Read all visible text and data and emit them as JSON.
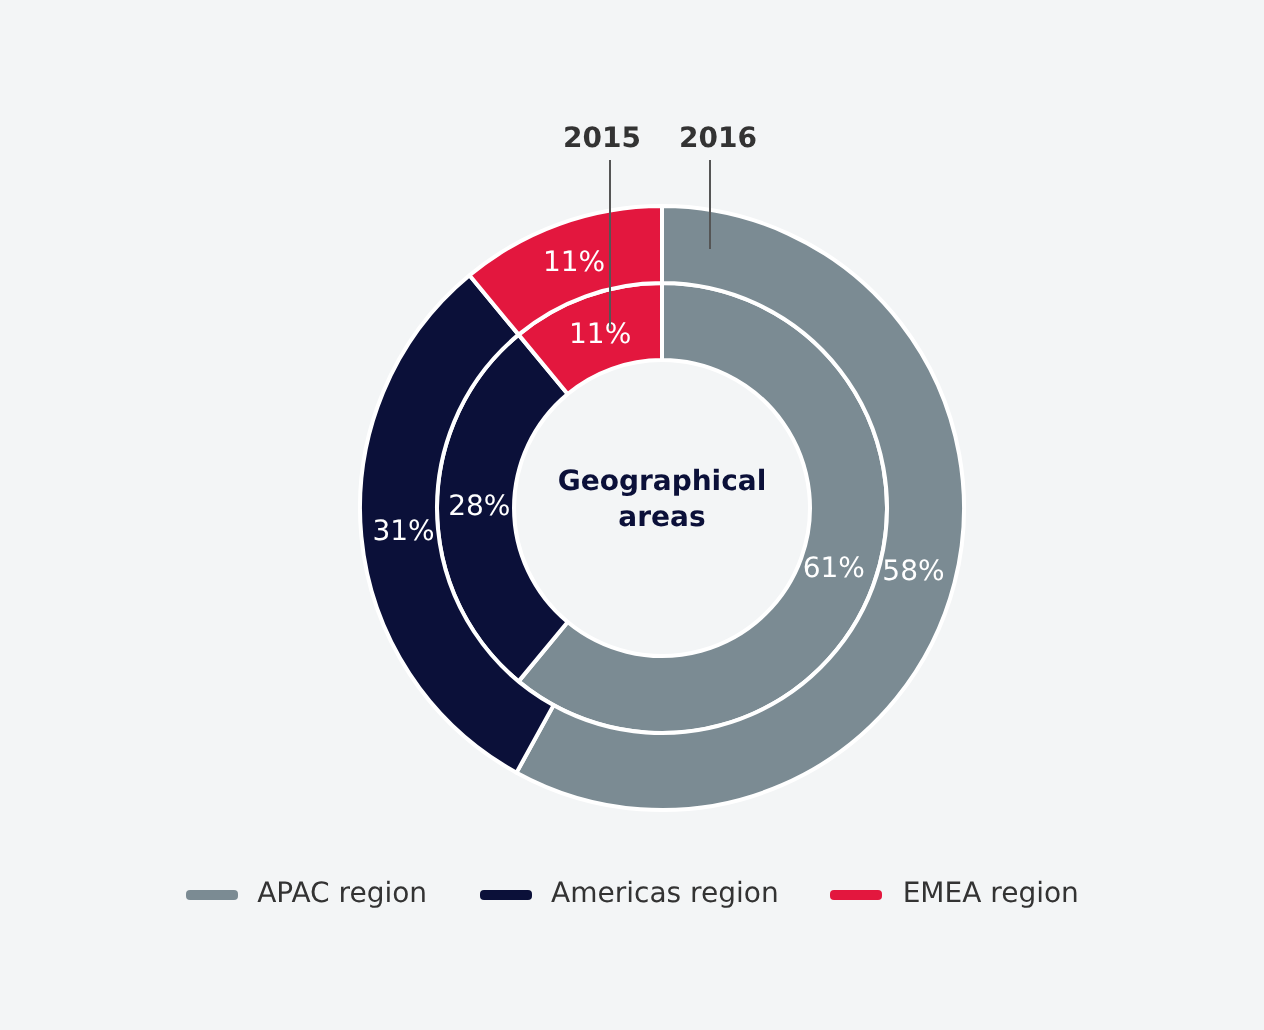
{
  "chart_data": {
    "type": "donut",
    "title": "Geographical areas",
    "categories": [
      "APAC region",
      "Americas region",
      "EMEA region"
    ],
    "colors": [
      "#7b8b93",
      "#0b1039",
      "#e3173e"
    ],
    "series": [
      {
        "name": "2016",
        "values": [
          58,
          31,
          11
        ],
        "value_labels": [
          "58%",
          "31%",
          "11%"
        ]
      },
      {
        "name": "2015",
        "values": [
          61,
          28,
          11
        ],
        "value_labels": [
          "61%",
          "28%",
          "11%"
        ]
      }
    ],
    "legend": "bottom"
  }
}
